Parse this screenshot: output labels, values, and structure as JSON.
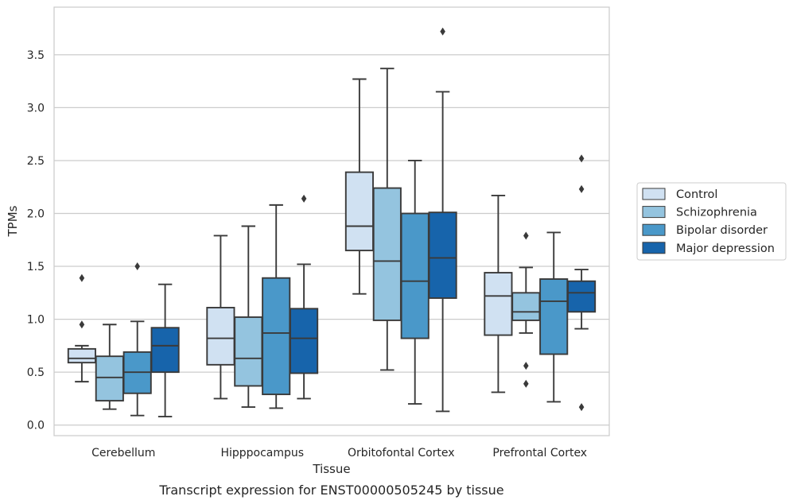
{
  "chart_data": {
    "type": "boxplot",
    "title": "",
    "caption": "Transcript expression for ENST00000505245 by tissue",
    "xlabel": "Tissue",
    "ylabel": "TPMs",
    "ylim": [
      -0.1,
      3.95
    ],
    "yticks": [
      0.0,
      0.5,
      1.0,
      1.5,
      2.0,
      2.5,
      3.0,
      3.5
    ],
    "ytick_labels": [
      "0.0",
      "0.5",
      "1.0",
      "1.5",
      "2.0",
      "2.5",
      "3.0",
      "3.5"
    ],
    "grid": "horizontal",
    "legend_position": "outside-right",
    "categories": [
      "Cerebellum",
      "Hipppocampus",
      "Orbitofontal Cortex",
      "Prefrontal Cortex"
    ],
    "series": [
      {
        "name": "Control",
        "color": "#d0e1f2",
        "boxes": [
          {
            "whisker_low": 0.41,
            "q1": 0.59,
            "median": 0.63,
            "q3": 0.72,
            "whisker_high": 0.75,
            "outliers": [
              0.95,
              1.39
            ]
          },
          {
            "whisker_low": 0.25,
            "q1": 0.57,
            "median": 0.82,
            "q3": 1.11,
            "whisker_high": 1.79,
            "outliers": []
          },
          {
            "whisker_low": 1.24,
            "q1": 1.65,
            "median": 1.88,
            "q3": 2.39,
            "whisker_high": 3.27,
            "outliers": []
          },
          {
            "whisker_low": 0.31,
            "q1": 0.85,
            "median": 1.22,
            "q3": 1.44,
            "whisker_high": 2.17,
            "outliers": []
          }
        ]
      },
      {
        "name": "Schizophrenia",
        "color": "#94c4df",
        "boxes": [
          {
            "whisker_low": 0.15,
            "q1": 0.23,
            "median": 0.45,
            "q3": 0.65,
            "whisker_high": 0.95,
            "outliers": []
          },
          {
            "whisker_low": 0.17,
            "q1": 0.37,
            "median": 0.63,
            "q3": 1.02,
            "whisker_high": 1.88,
            "outliers": []
          },
          {
            "whisker_low": 0.52,
            "q1": 0.99,
            "median": 1.55,
            "q3": 2.24,
            "whisker_high": 3.37,
            "outliers": []
          },
          {
            "whisker_low": 0.87,
            "q1": 0.99,
            "median": 1.07,
            "q3": 1.25,
            "whisker_high": 1.49,
            "outliers": [
              0.39,
              0.56,
              1.79
            ]
          }
        ]
      },
      {
        "name": "Bipolar disorder",
        "color": "#4a98c9",
        "boxes": [
          {
            "whisker_low": 0.09,
            "q1": 0.3,
            "median": 0.5,
            "q3": 0.69,
            "whisker_high": 0.98,
            "outliers": [
              1.5
            ]
          },
          {
            "whisker_low": 0.16,
            "q1": 0.29,
            "median": 0.87,
            "q3": 1.39,
            "whisker_high": 2.08,
            "outliers": []
          },
          {
            "whisker_low": 0.2,
            "q1": 0.82,
            "median": 1.36,
            "q3": 2.0,
            "whisker_high": 2.5,
            "outliers": []
          },
          {
            "whisker_low": 0.22,
            "q1": 0.67,
            "median": 1.17,
            "q3": 1.38,
            "whisker_high": 1.82,
            "outliers": []
          }
        ]
      },
      {
        "name": "Major depression",
        "color": "#1764ab",
        "boxes": [
          {
            "whisker_low": 0.08,
            "q1": 0.5,
            "median": 0.75,
            "q3": 0.92,
            "whisker_high": 1.33,
            "outliers": []
          },
          {
            "whisker_low": 0.25,
            "q1": 0.49,
            "median": 0.82,
            "q3": 1.1,
            "whisker_high": 1.52,
            "outliers": [
              2.14
            ]
          },
          {
            "whisker_low": 0.13,
            "q1": 1.2,
            "median": 1.58,
            "q3": 2.01,
            "whisker_high": 3.15,
            "outliers": [
              3.72
            ]
          },
          {
            "whisker_low": 0.91,
            "q1": 1.07,
            "median": 1.25,
            "q3": 1.36,
            "whisker_high": 1.47,
            "outliers": [
              0.17,
              2.23,
              2.52
            ]
          }
        ]
      }
    ],
    "colors": {
      "grid": "#cccccc",
      "spine": "#cccccc",
      "line": "#3a3a3a"
    }
  }
}
